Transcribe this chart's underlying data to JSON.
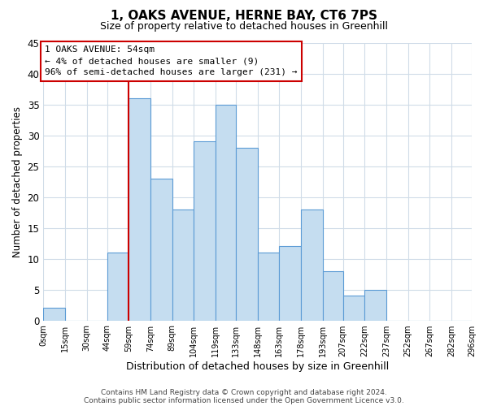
{
  "title": "1, OAKS AVENUE, HERNE BAY, CT6 7PS",
  "subtitle": "Size of property relative to detached houses in Greenhill",
  "xlabel": "Distribution of detached houses by size in Greenhill",
  "ylabel": "Number of detached properties",
  "bin_edges": [
    0,
    15,
    30,
    44,
    59,
    74,
    89,
    104,
    119,
    133,
    148,
    163,
    178,
    193,
    207,
    222,
    237,
    252,
    267,
    282,
    296
  ],
  "bin_labels": [
    "0sqm",
    "15sqm",
    "30sqm",
    "44sqm",
    "59sqm",
    "74sqm",
    "89sqm",
    "104sqm",
    "119sqm",
    "133sqm",
    "148sqm",
    "163sqm",
    "178sqm",
    "193sqm",
    "207sqm",
    "222sqm",
    "237sqm",
    "252sqm",
    "267sqm",
    "282sqm",
    "296sqm"
  ],
  "counts": [
    2,
    0,
    0,
    11,
    36,
    23,
    18,
    29,
    35,
    28,
    11,
    12,
    18,
    8,
    4,
    5,
    0,
    0,
    0,
    0
  ],
  "bar_color": "#c5ddf0",
  "bar_edge_color": "#5b9bd5",
  "ylim": [
    0,
    45
  ],
  "yticks": [
    0,
    5,
    10,
    15,
    20,
    25,
    30,
    35,
    40,
    45
  ],
  "property_line_x": 59,
  "property_line_color": "#cc0000",
  "annotation_line1": "1 OAKS AVENUE: 54sqm",
  "annotation_line2": "← 4% of detached houses are smaller (9)",
  "annotation_line3": "96% of semi-detached houses are larger (231) →",
  "annotation_box_color": "#ffffff",
  "annotation_box_edge": "#cc0000",
  "footer_line1": "Contains HM Land Registry data © Crown copyright and database right 2024.",
  "footer_line2": "Contains public sector information licensed under the Open Government Licence v3.0.",
  "background_color": "#ffffff",
  "grid_color": "#d0dce8"
}
